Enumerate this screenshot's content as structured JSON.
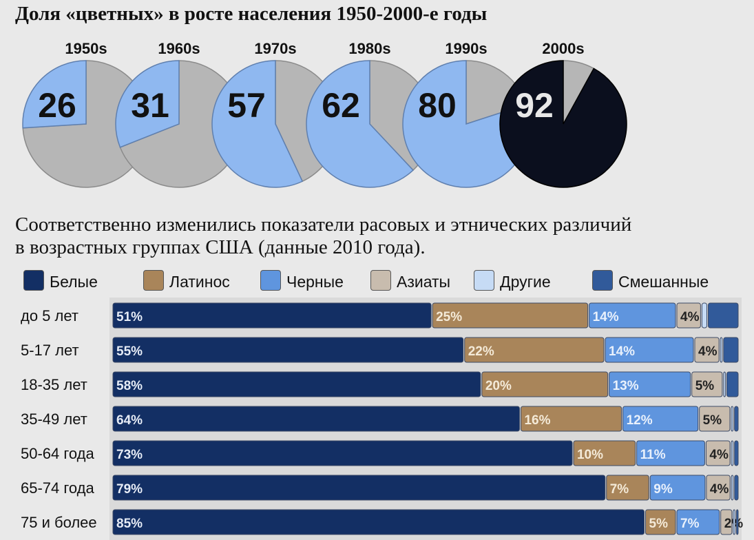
{
  "title": "Доля «цветных» в росте населения  1950-2000-е годы",
  "subtitle": "Соответственно изменились показатели расовых и этнических различий\nв возрастных группах США (данные 2010 года).",
  "colors": {
    "pie_main": "#8fb8f0",
    "pie_rest": "#b6b6b6",
    "pie_dark": "#0b0f1e",
    "white_group": "#132f64",
    "latino": "#a9855a",
    "black": "#5f95de",
    "asian": "#c8bcae",
    "other": "#c6dbf5",
    "mixed": "#315a9a"
  },
  "legend": [
    {
      "label": "Белые",
      "color": "#132f64"
    },
    {
      "label": "Латинос",
      "color": "#a9855a"
    },
    {
      "label": "Черные",
      "color": "#5f95de"
    },
    {
      "label": "Азиаты",
      "color": "#c8bcae"
    },
    {
      "label": "Другие",
      "color": "#c6dbf5"
    },
    {
      "label": "Смешанные",
      "color": "#315a9a"
    }
  ],
  "chart_data": [
    {
      "type": "pie",
      "charts": [
        {
          "decade": "1950s",
          "value": 26,
          "label": "26"
        },
        {
          "decade": "1960s",
          "value": 31,
          "label": "31"
        },
        {
          "decade": "1970s",
          "value": 57,
          "label": "57"
        },
        {
          "decade": "1980s",
          "value": 62,
          "label": "62"
        },
        {
          "decade": "1990s",
          "value": 80,
          "label": "80"
        },
        {
          "decade": "2000s",
          "value": 92,
          "label": "92"
        }
      ]
    },
    {
      "type": "bar",
      "stacked": true,
      "orientation": "horizontal",
      "categories": [
        "до 5 лет",
        "5-17 лет",
        "18-35 лет",
        "35-49 лет",
        "50-64 года",
        "65-74 года",
        "75 и более"
      ],
      "series": [
        {
          "name": "Белые",
          "values": [
            51,
            55,
            58,
            64,
            73,
            79,
            85
          ],
          "labels": [
            "51%",
            "55%",
            "58%",
            "64%",
            "73%",
            "79%",
            "85%"
          ]
        },
        {
          "name": "Латинос",
          "values": [
            25,
            22,
            20,
            16,
            10,
            7,
            5
          ],
          "labels": [
            "25%",
            "22%",
            "20%",
            "16%",
            "10%",
            "7%",
            "5%"
          ]
        },
        {
          "name": "Черные",
          "values": [
            14,
            14,
            13,
            12,
            11,
            9,
            7
          ],
          "labels": [
            "14%",
            "14%",
            "13%",
            "12%",
            "11%",
            "9%",
            "7%"
          ]
        },
        {
          "name": "Азиаты",
          "values": [
            4,
            4,
            5,
            5,
            4,
            4,
            2
          ],
          "labels": [
            "4%",
            "4%",
            "5%",
            "5%",
            "4%",
            "4%",
            "2%"
          ]
        },
        {
          "name": "Другие",
          "values": [
            1,
            0.5,
            0.5,
            0.5,
            0.5,
            0.5,
            0.5
          ],
          "labels": [
            "",
            "",
            "",
            "",
            "",
            "",
            ""
          ]
        },
        {
          "name": "Смешанные",
          "values": [
            5,
            2.5,
            2,
            0.8,
            0.8,
            0.8,
            0.5
          ],
          "labels": [
            "",
            "",
            "",
            "",
            "",
            "",
            ""
          ]
        }
      ],
      "xlim": [
        0,
        100
      ]
    }
  ]
}
